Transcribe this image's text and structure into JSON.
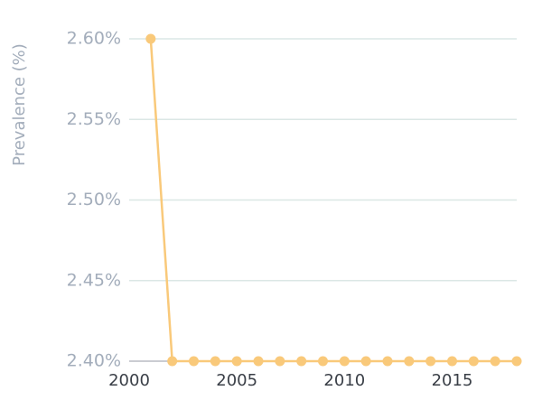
{
  "chart_data": {
    "type": "line",
    "ylabel": "Prevalence (%)",
    "xlabel": "",
    "xlim": [
      2000,
      2018
    ],
    "ylim": [
      2.4,
      2.6
    ],
    "x_ticks": [
      2000,
      2005,
      2010,
      2015
    ],
    "x_tick_labels": [
      "2000",
      "2005",
      "2010",
      "2015"
    ],
    "y_ticks": [
      2.4,
      2.45,
      2.5,
      2.55,
      2.6
    ],
    "y_tick_labels": [
      "2.40%",
      "2.45%",
      "2.50%",
      "2.55%",
      "2.60%"
    ],
    "grid": true,
    "color": "#f9c97a",
    "series": [
      {
        "x": [
          2001,
          2002,
          2003,
          2004,
          2005,
          2006,
          2007,
          2008,
          2009,
          2010,
          2011,
          2012,
          2013,
          2014,
          2015,
          2016,
          2017,
          2018
        ],
        "values": [
          2.6,
          2.4,
          2.4,
          2.4,
          2.4,
          2.4,
          2.4,
          2.4,
          2.4,
          2.4,
          2.4,
          2.4,
          2.4,
          2.4,
          2.4,
          2.4,
          2.4,
          2.4
        ]
      }
    ]
  }
}
